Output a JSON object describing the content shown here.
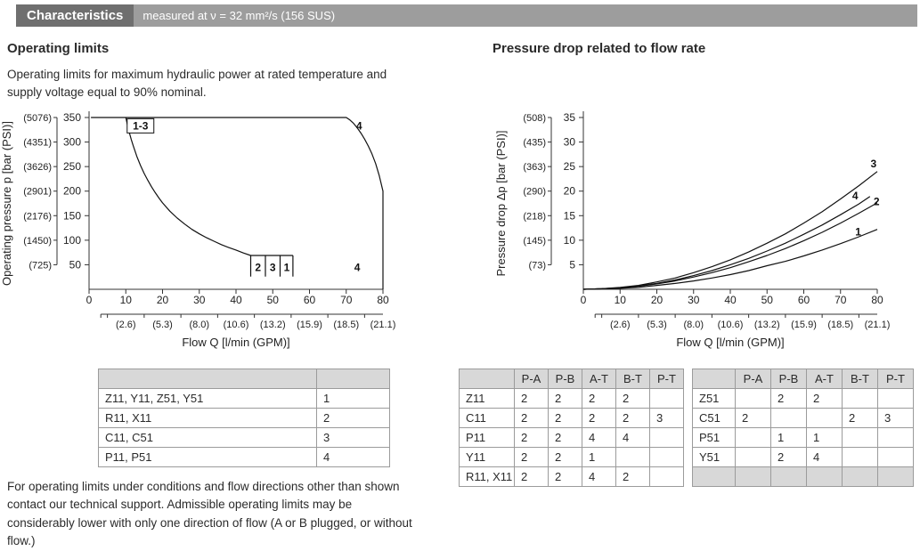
{
  "header": {
    "title": "Characteristics",
    "subtitle": "measured at ν = 32 mm²/s (156 SUS)"
  },
  "left": {
    "heading": "Operating limits",
    "intro": "Operating limits for maximum hydraulic power at rated temperature and supply voltage equal to 90% nominal.",
    "note": "For operating limits under conditions and flow directions other than shown contact our technical support. Admissible operating limits may be considerably lower with only one direction of flow (A or B plugged, or without flow.)"
  },
  "right": {
    "heading": "Pressure drop related to flow rate"
  },
  "chart_data": [
    {
      "type": "line",
      "title": "Operating limits",
      "xlabel": "Flow Q [l/min (GPM)]",
      "ylabel": "Operating pressure p [bar (PSI)]",
      "xlim": [
        0,
        80
      ],
      "ylim": [
        0,
        370
      ],
      "x_ticks": [
        0,
        10,
        20,
        30,
        40,
        50,
        60,
        70,
        80
      ],
      "x_ticks2": [
        "(2.6)",
        "(5.3)",
        "(8.0)",
        "(10.6)",
        "(13.2)",
        "(15.9)",
        "(18.5)",
        "(21.1)"
      ],
      "y_ticks": [
        50,
        100,
        150,
        200,
        250,
        300,
        350
      ],
      "y_ticks2": [
        "(725)",
        "(1450)",
        "(2176)",
        "(2901)",
        "(3626)",
        "(4351)",
        "(5076)"
      ],
      "series": [
        {
          "name": "envelope-curve-4",
          "points": [
            [
              0.5,
              350
            ],
            [
              70,
              350
            ],
            [
              71,
              345
            ],
            [
              72,
              338
            ],
            [
              73,
              329
            ],
            [
              74,
              318
            ],
            [
              75,
              306
            ],
            [
              76,
              292
            ],
            [
              77,
              276
            ],
            [
              78,
              256
            ],
            [
              79,
              231
            ],
            [
              80,
              200
            ],
            [
              80,
              0
            ]
          ]
        },
        {
          "name": "envelope-curves-1-3",
          "points": [
            [
              10,
              350
            ],
            [
              10.5,
              333
            ],
            [
              11,
              318
            ],
            [
              11.5,
              305
            ],
            [
              12,
              293
            ],
            [
              13,
              271
            ],
            [
              14,
              252
            ],
            [
              15,
              236
            ],
            [
              16,
              222
            ],
            [
              17,
              209
            ],
            [
              18,
              197
            ],
            [
              19,
              186
            ],
            [
              20,
              176
            ],
            [
              22,
              159
            ],
            [
              24,
              145
            ],
            [
              26,
              133
            ],
            [
              28,
              122
            ],
            [
              30,
              113
            ],
            [
              32,
              105
            ],
            [
              34,
              98
            ],
            [
              36,
              91
            ],
            [
              38,
              85
            ],
            [
              40,
              80
            ],
            [
              42,
              74
            ],
            [
              44,
              69
            ],
            [
              55.5,
              69
            ]
          ]
        },
        {
          "name": "flow-limit-left",
          "points": [
            [
              44,
              69
            ],
            [
              44,
              26
            ]
          ]
        },
        {
          "name": "flow-limit-2",
          "points": [
            [
              48,
              69
            ],
            [
              48,
              26
            ]
          ]
        },
        {
          "name": "flow-limit-3",
          "points": [
            [
              52,
              69
            ],
            [
              52,
              26
            ]
          ]
        },
        {
          "name": "flow-limit-1",
          "points": [
            [
              55.5,
              69
            ],
            [
              55.5,
              26
            ]
          ]
        }
      ],
      "annotations": [
        {
          "text": "1-3",
          "x": 14,
          "y": 333,
          "boxed": true
        },
        {
          "text": "4",
          "x": 73.5,
          "y": 333,
          "boxed": false
        },
        {
          "text": "2",
          "x": 46,
          "y": 44,
          "boxed": false
        },
        {
          "text": "3",
          "x": 50,
          "y": 44,
          "boxed": false
        },
        {
          "text": "1",
          "x": 53.8,
          "y": 44,
          "boxed": false
        },
        {
          "text": "4",
          "x": 73,
          "y": 44,
          "boxed": false
        }
      ]
    },
    {
      "type": "line",
      "title": "Pressure drop related to flow rate",
      "xlabel": "Flow Q [l/min (GPM)]",
      "ylabel": "Pressure drop Δp [bar (PSI)]",
      "xlim": [
        0,
        80
      ],
      "ylim": [
        0,
        37
      ],
      "x_ticks": [
        0,
        10,
        20,
        30,
        40,
        50,
        60,
        70,
        80
      ],
      "x_ticks2": [
        "(2.6)",
        "(5.3)",
        "(8.0)",
        "(10.6)",
        "(13.2)",
        "(15.9)",
        "(18.5)",
        "(21.1)"
      ],
      "y_ticks": [
        5,
        10,
        15,
        20,
        25,
        30,
        35
      ],
      "y_ticks2": [
        "(73)",
        "(145)",
        "(218)",
        "(290)",
        "(363)",
        "(435)",
        "(508)"
      ],
      "series": [
        {
          "name": "curve-3",
          "points": [
            [
              0,
              0
            ],
            [
              5,
              0.1
            ],
            [
              10,
              0.4
            ],
            [
              15,
              0.8
            ],
            [
              20,
              1.5
            ],
            [
              25,
              2.3
            ],
            [
              30,
              3.4
            ],
            [
              35,
              4.6
            ],
            [
              40,
              6
            ],
            [
              45,
              7.6
            ],
            [
              50,
              9.4
            ],
            [
              55,
              11.3
            ],
            [
              60,
              13.5
            ],
            [
              65,
              15.8
            ],
            [
              70,
              18.4
            ],
            [
              75,
              21.1
            ],
            [
              80,
              24
            ]
          ]
        },
        {
          "name": "curve-4",
          "points": [
            [
              0,
              0
            ],
            [
              5,
              0.1
            ],
            [
              10,
              0.3
            ],
            [
              15,
              0.7
            ],
            [
              20,
              1.2
            ],
            [
              25,
              1.9
            ],
            [
              30,
              2.8
            ],
            [
              35,
              3.8
            ],
            [
              40,
              5
            ],
            [
              45,
              6.3
            ],
            [
              50,
              7.8
            ],
            [
              55,
              9.4
            ],
            [
              60,
              11.2
            ],
            [
              65,
              13.1
            ],
            [
              70,
              15.2
            ],
            [
              75,
              17.4
            ],
            [
              78,
              18.9
            ]
          ]
        },
        {
          "name": "curve-2",
          "points": [
            [
              0,
              0
            ],
            [
              5,
              0.1
            ],
            [
              10,
              0.3
            ],
            [
              15,
              0.6
            ],
            [
              20,
              1.1
            ],
            [
              25,
              1.7
            ],
            [
              30,
              2.5
            ],
            [
              35,
              3.4
            ],
            [
              40,
              4.4
            ],
            [
              45,
              5.6
            ],
            [
              50,
              6.9
            ],
            [
              55,
              8.3
            ],
            [
              60,
              9.9
            ],
            [
              65,
              11.6
            ],
            [
              70,
              13.5
            ],
            [
              75,
              15.5
            ],
            [
              80,
              17.6
            ]
          ]
        },
        {
          "name": "curve-1",
          "points": [
            [
              0,
              0
            ],
            [
              5,
              0.1
            ],
            [
              10,
              0.2
            ],
            [
              15,
              0.4
            ],
            [
              20,
              0.8
            ],
            [
              25,
              1.2
            ],
            [
              30,
              1.7
            ],
            [
              35,
              2.3
            ],
            [
              40,
              3
            ],
            [
              45,
              3.8
            ],
            [
              50,
              4.8
            ],
            [
              55,
              5.7
            ],
            [
              60,
              6.8
            ],
            [
              65,
              8
            ],
            [
              70,
              9.3
            ],
            [
              75,
              10.7
            ],
            [
              80,
              12.2
            ]
          ]
        }
      ],
      "annotations": [
        {
          "text": "3",
          "x": 79,
          "y": 25.6,
          "boxed": false
        },
        {
          "text": "4",
          "x": 74,
          "y": 19,
          "boxed": false
        },
        {
          "text": "2",
          "x": 79.8,
          "y": 17.9,
          "boxed": false
        },
        {
          "text": "1",
          "x": 74.8,
          "y": 11.7,
          "boxed": false
        }
      ]
    }
  ],
  "tables": {
    "legend": {
      "columns": [
        "",
        ""
      ],
      "rows": [
        [
          "Z11, Y11, Z51, Y51",
          "1"
        ],
        [
          "R11, X11",
          "2"
        ],
        [
          "C11, C51",
          "3"
        ],
        [
          "P11, P51",
          "4"
        ]
      ]
    },
    "dp_a": {
      "columns": [
        "",
        "P-A",
        "P-B",
        "A-T",
        "B-T",
        "P-T"
      ],
      "rows": [
        [
          "Z11",
          "2",
          "2",
          "2",
          "2",
          ""
        ],
        [
          "C11",
          "2",
          "2",
          "2",
          "2",
          "3"
        ],
        [
          "P11",
          "2",
          "2",
          "4",
          "4",
          ""
        ],
        [
          "Y11",
          "2",
          "2",
          "1",
          "",
          ""
        ],
        [
          "R11, X11",
          "2",
          "2",
          "4",
          "2",
          ""
        ]
      ]
    },
    "dp_b": {
      "columns": [
        "",
        "P-A",
        "P-B",
        "A-T",
        "B-T",
        "P-T"
      ],
      "rows": [
        [
          "Z51",
          "",
          "2",
          "2",
          "",
          ""
        ],
        [
          "C51",
          "2",
          "",
          "",
          "2",
          "3"
        ],
        [
          "P51",
          "",
          "1",
          "1",
          "",
          ""
        ],
        [
          "Y51",
          "",
          "2",
          "4",
          "",
          ""
        ],
        [
          "",
          "",
          "",
          "",
          "",
          ""
        ]
      ]
    }
  }
}
